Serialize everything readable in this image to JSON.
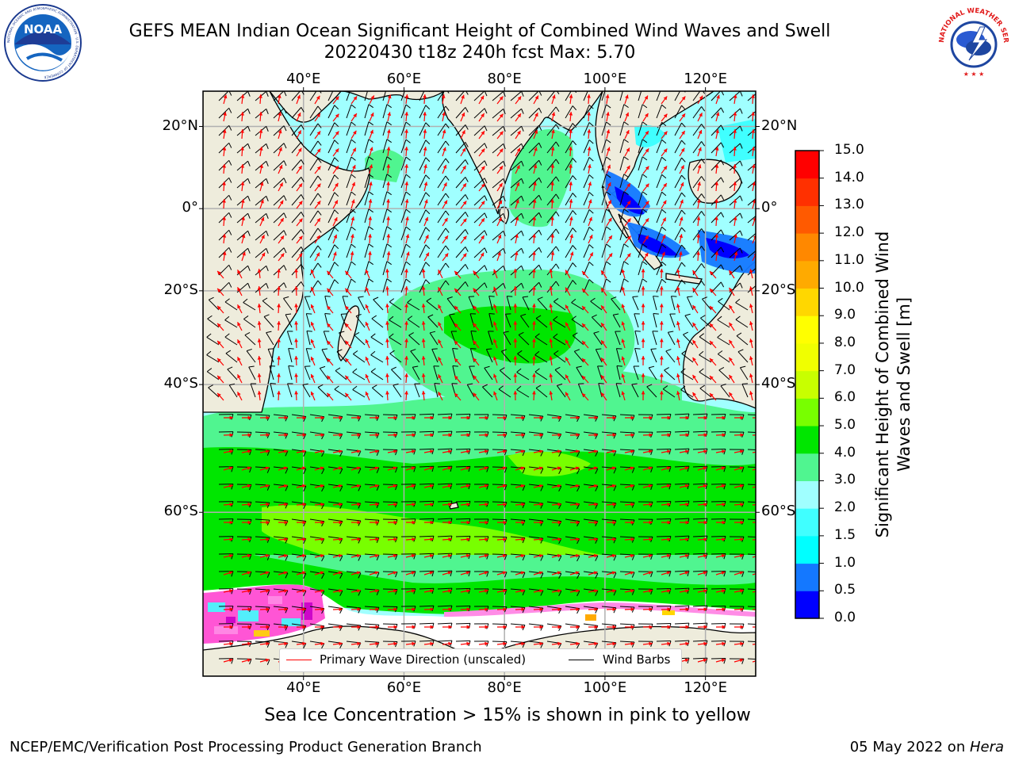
{
  "header": {
    "title_line1": "GEFS MEAN Indian Ocean Significant Height of Combined Wind Waves and Swell",
    "title_line2": "20220430 t18z 240h fcst   Max: 5.70"
  },
  "logos": {
    "left": {
      "name": "noaa-logo",
      "text": "NOAA",
      "ring_text": "NATIONAL OCEANIC AND ATMOSPHERIC ADMINISTRATION · U.S. DEPARTMENT OF COMMERCE"
    },
    "right": {
      "name": "nws-logo",
      "ring_text": "NATIONAL WEATHER SERVICE"
    }
  },
  "map": {
    "lon_labels": [
      "40°E",
      "60°E",
      "80°E",
      "100°E",
      "120°E"
    ],
    "lat_labels": [
      "20°N",
      "0°",
      "20°S",
      "40°S",
      "60°S"
    ],
    "lon_values": [
      40,
      60,
      80,
      100,
      120
    ],
    "lat_values": [
      20,
      0,
      -20,
      -40,
      -60
    ],
    "lon_range": [
      20,
      130
    ],
    "lat_range": [
      -75,
      28
    ],
    "grid": true,
    "colors": {
      "land": "#eeecdc",
      "wave_arrows": "#ff0000",
      "wind_barbs": "#000000",
      "grid": "#b0b0b0"
    }
  },
  "colorbar": {
    "label": "Significant Height of Combined Wind Waves and Swell [m]",
    "ticks": [
      "0.0",
      "0.5",
      "1.0",
      "1.5",
      "2.0",
      "3.0",
      "4.0",
      "5.0",
      "6.0",
      "7.0",
      "8.0",
      "9.0",
      "10.0",
      "11.0",
      "12.0",
      "13.0",
      "14.0",
      "15.0"
    ],
    "colors": [
      "#0000ff",
      "#1478ff",
      "#00ffff",
      "#40ffff",
      "#a0ffff",
      "#50f590",
      "#00e600",
      "#78ff00",
      "#c8ff00",
      "#f0ff00",
      "#ffff00",
      "#ffd700",
      "#ffaa00",
      "#ff8800",
      "#ff5a00",
      "#ff3000",
      "#ff0000"
    ]
  },
  "legend": {
    "primary_wave": "Primary Wave Direction (unscaled)",
    "wind_barbs": "Wind Barbs"
  },
  "footer": {
    "sea_ice_note": "Sea Ice Concentration > 15% is shown in pink to yellow",
    "left": "NCEP/EMC/Verification Post Processing Product Generation Branch",
    "right_date": "05 May 2022 on ",
    "right_host": "Hera"
  }
}
